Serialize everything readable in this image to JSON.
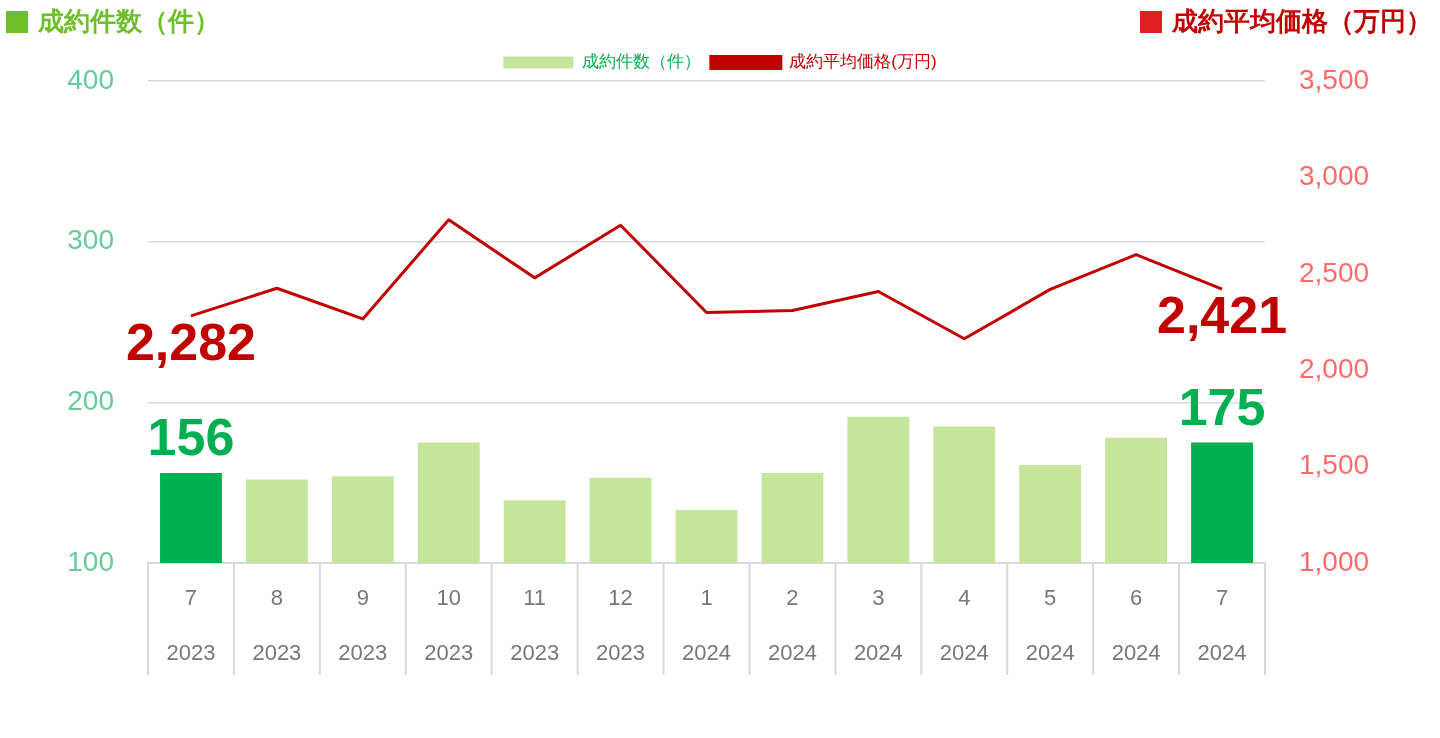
{
  "chart_data": {
    "type": "bar",
    "ylabel": "成約件数（件）",
    "y2label": "成約平均価格（万円）",
    "categories": [
      "7\n2023",
      "8\n2023",
      "9\n2023",
      "10\n2023",
      "11\n2023",
      "12\n2023",
      "1\n2024",
      "2\n2024",
      "3\n2024",
      "4\n2024",
      "5\n2024",
      "6\n2024",
      "7\n2024"
    ],
    "series": [
      {
        "name": "成約件数（件）",
        "color": "#c5e59b",
        "colors": [
          "#00b050",
          "#c5e59b",
          "#c5e59b",
          "#c5e59b",
          "#c5e59b",
          "#c5e59b",
          "#c5e59b",
          "#c5e59b",
          "#c5e59b",
          "#c5e59b",
          "#c5e59b",
          "#c5e59b",
          "#00b050"
        ],
        "values": [
          156,
          152,
          154,
          175,
          139,
          153,
          133,
          156,
          191,
          185,
          161,
          178,
          175
        ],
        "value_labels": [
          "156",
          null,
          null,
          null,
          null,
          null,
          null,
          null,
          null,
          null,
          null,
          null,
          "175"
        ]
      },
      {
        "name": "成約平均価格(万円)",
        "type": "line",
        "axis": "y2",
        "color": "#c00000",
        "marker": "none",
        "values": [
          2282,
          2425,
          2266,
          2780,
          2479,
          2752,
          2299,
          2310,
          2408,
          2163,
          2419,
          2599,
          2421
        ],
        "value_labels": [
          "2,282",
          null,
          null,
          null,
          null,
          null,
          null,
          null,
          null,
          null,
          null,
          null,
          "2,421"
        ]
      }
    ],
    "ylim": [
      100,
      400
    ],
    "yticks": [
      100,
      200,
      300,
      400
    ],
    "y2lim": [
      1000,
      3500
    ],
    "y2ticks": [
      {
        "value": 1000,
        "label": "1,000"
      },
      {
        "value": 1500,
        "label": "1,500"
      },
      {
        "value": 2000,
        "label": "2,000"
      },
      {
        "value": 2500,
        "label": "2,500"
      },
      {
        "value": 3000,
        "label": "3,000"
      },
      {
        "value": 3500,
        "label": "3,500"
      }
    ],
    "grid": "y",
    "legend": "top"
  }
}
